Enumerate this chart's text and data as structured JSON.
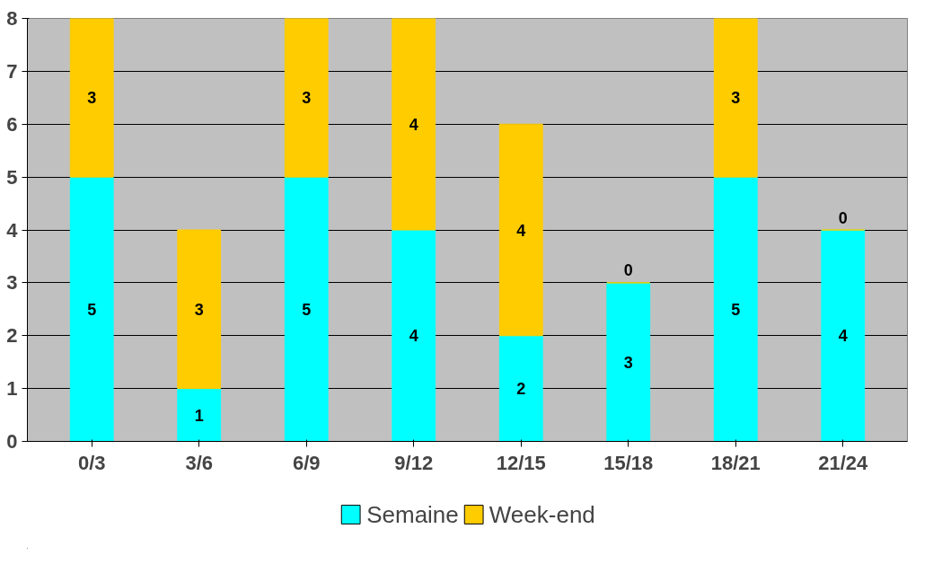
{
  "chart_data": {
    "type": "bar",
    "stacked": true,
    "categories": [
      "0/3",
      "3/6",
      "6/9",
      "9/12",
      "12/15",
      "15/18",
      "18/21",
      "21/24"
    ],
    "series": [
      {
        "name": "Semaine",
        "color": "#00ffff",
        "values": [
          5,
          1,
          5,
          4,
          2,
          3,
          5,
          4
        ]
      },
      {
        "name": "Week-end",
        "color": "#ffcc00",
        "values": [
          3,
          3,
          3,
          4,
          4,
          0,
          3,
          0
        ]
      }
    ],
    "ylim": [
      0,
      8
    ],
    "yticks": [
      0,
      1,
      2,
      3,
      4,
      5,
      6,
      7,
      8
    ],
    "grid": "y",
    "legend": "bottom",
    "data_labels": true
  }
}
